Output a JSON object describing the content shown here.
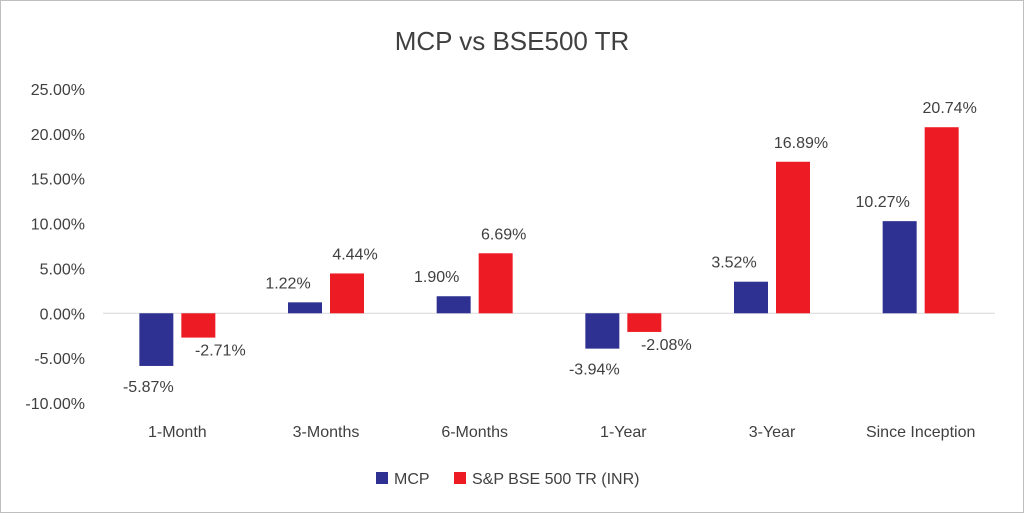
{
  "chart_data": {
    "type": "bar",
    "title": "MCP vs BSE500 TR",
    "categories": [
      "1-Month",
      "3-Months",
      "6-Months",
      "1-Year",
      "3-Year",
      "Since Inception"
    ],
    "series": [
      {
        "name": "MCP",
        "values": [
          -5.87,
          1.22,
          1.9,
          -3.94,
          3.52,
          10.27
        ],
        "labels": [
          "-5.87%",
          "1.22%",
          "1.90%",
          "-3.94%",
          "3.52%",
          "10.27%"
        ]
      },
      {
        "name": "S&P BSE 500 TR (INR)",
        "values": [
          -2.71,
          4.44,
          6.69,
          -2.08,
          16.89,
          20.74
        ],
        "labels": [
          "-2.71%",
          "4.44%",
          "6.69%",
          "-2.08%",
          "16.89%",
          "20.74%"
        ]
      }
    ],
    "y_ticks": [
      "-10.00%",
      "-5.00%",
      "0.00%",
      "5.00%",
      "10.00%",
      "15.00%",
      "20.00%",
      "25.00%"
    ],
    "ylim": [
      -10,
      25
    ],
    "grid": true,
    "legend_position": "bottom",
    "colors": {
      "MCP": "#2e3192",
      "S&P BSE 500 TR (INR)": "#ed1c24"
    }
  }
}
